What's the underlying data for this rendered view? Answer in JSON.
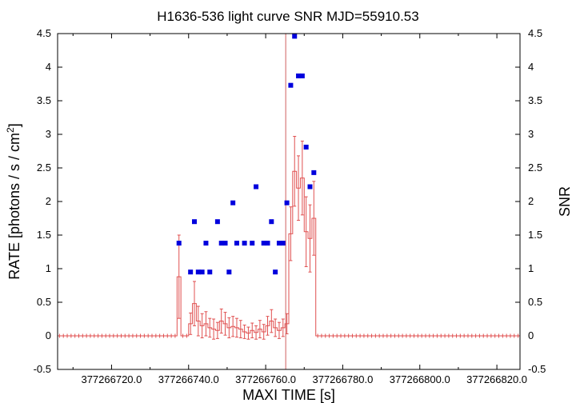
{
  "chart_data": {
    "type": "line",
    "title": "H1636-536 light curve  SNR MJD=55910.53",
    "xlabel": "MAXI TIME [s]",
    "ylabel": "RATE [photons / s / cm",
    "ylabel_sup": "2",
    "ylabel_end": "]",
    "y2label": "SNR",
    "xlim": [
      377266706,
      377266826
    ],
    "ylim": [
      -0.5,
      4.5
    ],
    "y2lim": [
      -0.5,
      4.5
    ],
    "x_ticks": [
      377266720,
      377266740,
      377266760,
      377266780,
      377266800,
      377266820
    ],
    "x_tick_labels": [
      "377266720.0",
      "377266740.0",
      "377266760.0",
      "377266780.0",
      "377266800.0",
      "377266820.0"
    ],
    "y_ticks": [
      -0.5,
      0,
      0.5,
      1,
      1.5,
      2,
      2.5,
      3,
      3.5,
      4,
      4.5
    ],
    "y_tick_labels": [
      "-0.5",
      "0",
      "0.5",
      "1",
      "1.5",
      "2",
      "2.5",
      "3",
      "3.5",
      "4",
      "4.5"
    ],
    "y2_tick_labels": [
      "-0.5",
      "0",
      "0.5",
      "1",
      "1.5",
      "2",
      "2.5",
      "3",
      "3.5",
      "4",
      "4.5"
    ],
    "marker_time": 377266765.2,
    "colors": {
      "rate": "#e05050",
      "snr": "#0000dd",
      "marker": "#d06060"
    },
    "bin_width": 1,
    "series": [
      {
        "kind": "rate_histogram",
        "x": [
          377266706,
          377266707,
          377266708,
          377266709,
          377266710,
          377266711,
          377266712,
          377266713,
          377266714,
          377266715,
          377266716,
          377266717,
          377266718,
          377266719,
          377266720,
          377266721,
          377266722,
          377266723,
          377266724,
          377266725,
          377266726,
          377266727,
          377266728,
          377266729,
          377266730,
          377266731,
          377266732,
          377266733,
          377266734,
          377266735,
          377266736,
          377266737,
          377266738,
          377266739,
          377266740,
          377266741,
          377266742,
          377266743,
          377266744,
          377266745,
          377266746,
          377266747,
          377266748,
          377266749,
          377266750,
          377266751,
          377266752,
          377266753,
          377266754,
          377266755,
          377266756,
          377266757,
          377266758,
          377266759,
          377266760,
          377266761,
          377266762,
          377266763,
          377266764,
          377266765,
          377266766,
          377266767,
          377266768,
          377266769,
          377266770,
          377266771,
          377266772,
          377266773,
          377266774,
          377266775,
          377266776,
          377266777,
          377266778,
          377266779,
          377266780,
          377266781,
          377266782,
          377266783,
          377266784,
          377266785,
          377266786,
          377266787,
          377266788,
          377266789,
          377266790,
          377266791,
          377266792,
          377266793,
          377266794,
          377266795,
          377266796,
          377266797,
          377266798,
          377266799,
          377266800,
          377266801,
          377266802,
          377266803,
          377266804,
          377266805,
          377266806,
          377266807,
          377266808,
          377266809,
          377266810,
          377266811,
          377266812,
          377266813,
          377266814,
          377266815,
          377266816,
          377266817,
          377266818,
          377266819,
          377266820,
          377266821,
          377266822,
          377266823,
          377266824,
          377266825
        ],
        "values": [
          0,
          0,
          0,
          0,
          0,
          0,
          0,
          0,
          0,
          0,
          0,
          0,
          0,
          0,
          0,
          0,
          0,
          0,
          0,
          0,
          0,
          0,
          0,
          0,
          0,
          0,
          0,
          0,
          0,
          0,
          0,
          0.88,
          0,
          0,
          0.18,
          0.48,
          0.22,
          0.15,
          0.18,
          0.12,
          0.1,
          0.08,
          0.22,
          0.18,
          0.12,
          0.14,
          0.12,
          0.1,
          0.06,
          0.04,
          0.08,
          0.05,
          0.1,
          0.06,
          0.15,
          0.22,
          0.12,
          0.08,
          0.12,
          0.18,
          1.52,
          2.45,
          2.2,
          2.35,
          1.55,
          1.45,
          1.75,
          0,
          0,
          0,
          0,
          0,
          0,
          0,
          0,
          0,
          0,
          0,
          0,
          0,
          0,
          0,
          0,
          0,
          0,
          0,
          0,
          0,
          0,
          0,
          0,
          0,
          0,
          0,
          0,
          0,
          0,
          0,
          0,
          0,
          0,
          0,
          0,
          0,
          0,
          0,
          0,
          0,
          0,
          0,
          0,
          0,
          0,
          0,
          0,
          0,
          0,
          0,
          0,
          0
        ],
        "errors": [
          0,
          0,
          0,
          0,
          0,
          0,
          0,
          0,
          0,
          0,
          0,
          0,
          0,
          0,
          0,
          0,
          0,
          0,
          0,
          0,
          0,
          0,
          0,
          0,
          0,
          0,
          0,
          0,
          0,
          0,
          0,
          0.62,
          0,
          0,
          0.16,
          0.33,
          0.22,
          0.18,
          0.18,
          0.14,
          0.15,
          0.12,
          0.18,
          0.17,
          0.15,
          0.15,
          0.14,
          0.13,
          0.1,
          0.09,
          0.11,
          0.1,
          0.13,
          0.11,
          0.14,
          0.17,
          0.13,
          0.12,
          0.13,
          0.15,
          0.4,
          0.52,
          0.48,
          0.55,
          0.52,
          0.5,
          0.55,
          0,
          0,
          0,
          0,
          0,
          0,
          0,
          0,
          0,
          0,
          0,
          0,
          0,
          0,
          0,
          0,
          0,
          0,
          0,
          0,
          0,
          0,
          0,
          0,
          0,
          0,
          0,
          0,
          0,
          0,
          0,
          0,
          0,
          0,
          0,
          0,
          0,
          0,
          0,
          0,
          0,
          0,
          0,
          0,
          0,
          0,
          0,
          0,
          0,
          0,
          0,
          0,
          0
        ]
      },
      {
        "kind": "snr_points",
        "axis": "right",
        "x": [
          377266737.5,
          377266740.5,
          377266741.5,
          377266742.5,
          377266743.5,
          377266744.5,
          377266745.5,
          377266747.5,
          377266748.5,
          377266749.5,
          377266750.5,
          377266751.5,
          377266752.5,
          377266754.5,
          377266756.5,
          377266757.5,
          377266759.5,
          377266760.5,
          377266761.5,
          377266762.5,
          377266763.5,
          377266764.5,
          377266765.5,
          377266766.5,
          377266767.5,
          377266768.5,
          377266769.5,
          377266770.5,
          377266771.5,
          377266772.5
        ],
        "values": [
          1.38,
          0.95,
          1.7,
          0.95,
          0.95,
          1.38,
          0.95,
          1.7,
          1.38,
          1.38,
          0.95,
          1.98,
          1.38,
          1.38,
          1.38,
          2.22,
          1.38,
          1.38,
          1.7,
          0.95,
          1.38,
          1.38,
          1.98,
          3.73,
          4.46,
          3.87,
          3.87,
          2.81,
          2.22,
          2.43
        ]
      }
    ]
  }
}
